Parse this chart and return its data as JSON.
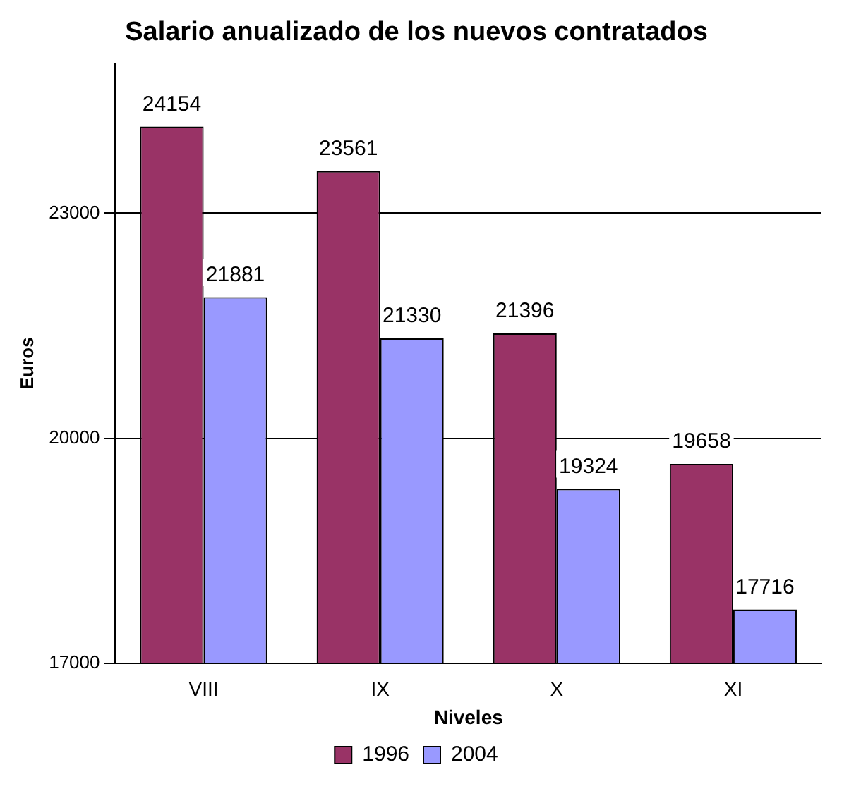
{
  "chart_data": {
    "type": "bar",
    "title": "Salario anualizado de los nuevos contratados",
    "xlabel": "Niveles",
    "ylabel": "Euros",
    "categories": [
      "VIII",
      "IX",
      "X",
      "XI"
    ],
    "series": [
      {
        "name": "1996",
        "color": "#993366",
        "values": [
          24154,
          23561,
          21396,
          19658
        ]
      },
      {
        "name": "2004",
        "color": "#9999ff",
        "values": [
          21881,
          21330,
          19324,
          17716
        ]
      }
    ],
    "ylim": [
      17000,
      25000
    ],
    "yticks": [
      17000,
      20000,
      23000
    ],
    "grid": "y",
    "legend": "bottom",
    "data_labels": true
  }
}
